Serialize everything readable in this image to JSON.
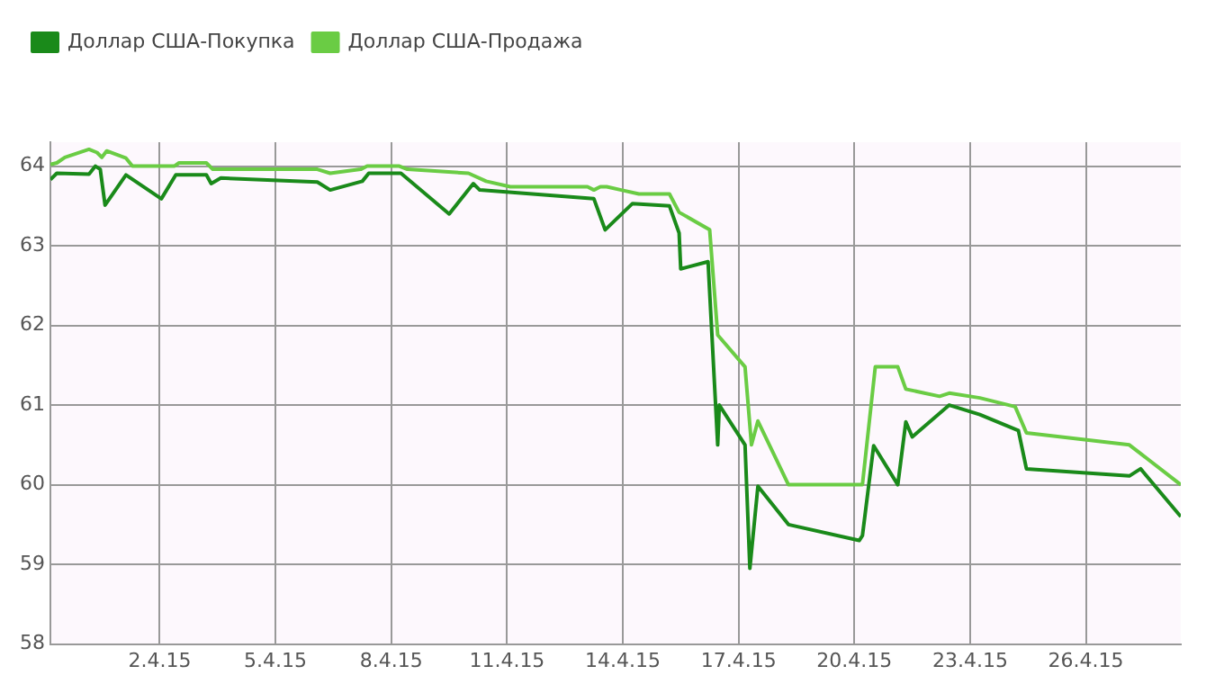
{
  "chart_data": {
    "type": "line",
    "series": [
      {
        "name": "Доллар США-Покупка",
        "color": "#1a8a1a",
        "x": [
          "--03-30T04:00",
          "--03-30T08:00",
          "--03-31T04:00",
          "--03-31T08:00",
          "--03-31T11:00",
          "--03-31T14:00",
          "--04-01T03:00",
          "--04-02T01:00",
          "--04-02T10:00",
          "--04-03T05:00",
          "--04-03T08:00",
          "--04-03T14:00",
          "--04-06T02:00",
          "--04-06T10:00",
          "--04-07T06:00",
          "--04-07T10:00",
          "--04-08T06:00",
          "--04-09T12:00",
          "--04-10T03:00",
          "--04-10T07:00",
          "--04-13T06:00",
          "--04-13T13:00",
          "--04-14T06:00",
          "--04-15T05:00",
          "--04-15T11:00",
          "--04-15T12:00",
          "--04-16T05:00",
          "--04-16T11:00",
          "--04-16T12:00",
          "--04-17T04:00",
          "--04-17T07:00",
          "--04-17T12:00",
          "--04-18T07:00",
          "--04-20T03:00",
          "--04-20T05:00",
          "--04-20T12:00",
          "--04-21T03:00",
          "--04-21T08:00",
          "--04-21T12:00",
          "--04-22T11:00",
          "--04-23T06:00",
          "--04-24T06:00",
          "--04-24T11:00",
          "--04-27T03:00",
          "--04-27T10:00",
          "--04-28T11:00"
        ],
        "values": [
          63.83,
          63.91,
          63.9,
          64.0,
          63.96,
          63.51,
          63.89,
          63.59,
          63.89,
          63.89,
          63.78,
          63.85,
          63.8,
          63.7,
          63.81,
          63.91,
          63.91,
          63.4,
          63.78,
          63.7,
          63.59,
          63.2,
          63.53,
          63.5,
          63.16,
          62.71,
          62.8,
          60.5,
          61.0,
          60.5,
          58.95,
          59.98,
          59.5,
          59.3,
          59.36,
          60.49,
          60.0,
          60.79,
          60.6,
          61.0,
          60.88,
          60.68,
          60.2,
          60.11,
          60.2,
          59.6
        ]
      },
      {
        "name": "Доллар США-Продажа",
        "color": "#6acc44",
        "x": [
          "--03-30T04:00",
          "--03-30T08:00",
          "--03-30T13:00",
          "--03-31T04:00",
          "--03-31T09:00",
          "--03-31T12:00",
          "--03-31T15:00",
          "--04-01T03:00",
          "--04-01T07:00",
          "--04-02T09:00",
          "--04-02T12:00",
          "--04-03T05:00",
          "--04-03T09:00",
          "--04-06T02:00",
          "--04-06T10:00",
          "--04-07T05:00",
          "--04-07T09:00",
          "--04-08T05:00",
          "--04-08T10:00",
          "--04-10T00:00",
          "--04-10T11:00",
          "--04-11T02:00",
          "--04-13T02:00",
          "--04-13T06:00",
          "--04-13T10:00",
          "--04-13T14:00",
          "--04-13T23:00",
          "--04-14T10:00",
          "--04-15T05:00",
          "--04-15T11:00",
          "--04-16T06:00",
          "--04-16T11:00",
          "--04-17T04:00",
          "--04-17T08:00",
          "--04-17T12:00",
          "--04-18T07:00",
          "--04-20T05:00",
          "--04-20T13:00",
          "--04-21T03:00",
          "--04-21T08:00",
          "--04-22T05:00",
          "--04-22T11:00",
          "--04-23T06:00",
          "--04-24T04:00",
          "--04-24T11:00",
          "--04-27T03:00",
          "--04-28T11:00"
        ],
        "values": [
          64.02,
          64.04,
          64.11,
          64.21,
          64.17,
          64.11,
          64.19,
          64.1,
          64.0,
          64.0,
          64.04,
          64.04,
          63.96,
          63.96,
          63.91,
          63.96,
          64.0,
          64.0,
          63.96,
          63.91,
          63.81,
          63.74,
          63.74,
          63.7,
          63.74,
          63.74,
          63.7,
          63.65,
          63.65,
          63.42,
          63.2,
          61.88,
          61.48,
          60.5,
          60.8,
          60.0,
          60.0,
          61.48,
          61.48,
          61.2,
          61.11,
          61.15,
          61.09,
          60.98,
          60.65,
          60.5,
          60.0
        ]
      }
    ],
    "xlim": [
      "--03-30T04:00",
      "--04-28T11:00"
    ],
    "xticks": [
      {
        "value": "--04-02",
        "label": "2.4.15"
      },
      {
        "value": "--04-05",
        "label": "5.4.15"
      },
      {
        "value": "--04-08",
        "label": "8.4.15"
      },
      {
        "value": "--04-11",
        "label": "11.4.15"
      },
      {
        "value": "--04-14",
        "label": "14.4.15"
      },
      {
        "value": "--04-17",
        "label": "17.4.15"
      },
      {
        "value": "--04-20",
        "label": "20.4.15"
      },
      {
        "value": "--04-23",
        "label": "23.4.15"
      },
      {
        "value": "--04-26",
        "label": "26.4.15"
      }
    ],
    "ylim": [
      58,
      64.3
    ],
    "yticks": [
      58,
      59,
      60,
      61,
      62,
      63,
      64
    ],
    "grid": true,
    "legend": "top left",
    "marker": "none",
    "line_style": "solid"
  }
}
